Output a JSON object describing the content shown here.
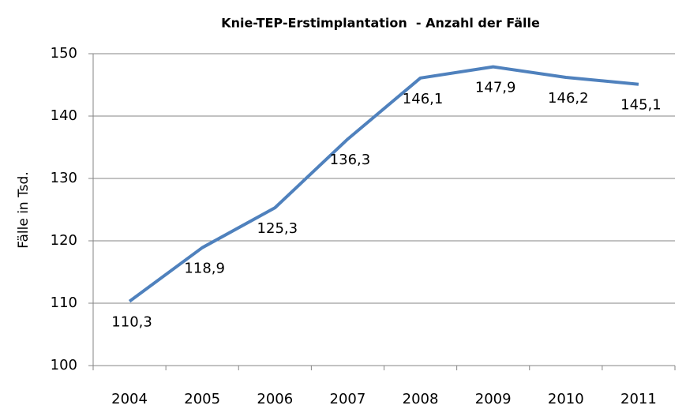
{
  "chart_data": {
    "type": "line",
    "title": "Knie-TEP-Erstimplantation  - Anzahl der Fälle",
    "y_label": "Fälle in Tsd.",
    "categories": [
      "2004",
      "2005",
      "2006",
      "2007",
      "2008",
      "2009",
      "2010",
      "2011"
    ],
    "values": [
      110.3,
      118.9,
      125.3,
      136.3,
      146.1,
      147.9,
      146.2,
      145.1
    ],
    "value_labels": [
      "110,3",
      "118,9",
      "125,3",
      "136,3",
      "146,1",
      "147,9",
      "146,2",
      "145,1"
    ],
    "color": "#4f81bd",
    "ylim": [
      100,
      150
    ],
    "yticks": [
      100,
      110,
      120,
      130,
      140,
      150
    ],
    "grid": true
  }
}
